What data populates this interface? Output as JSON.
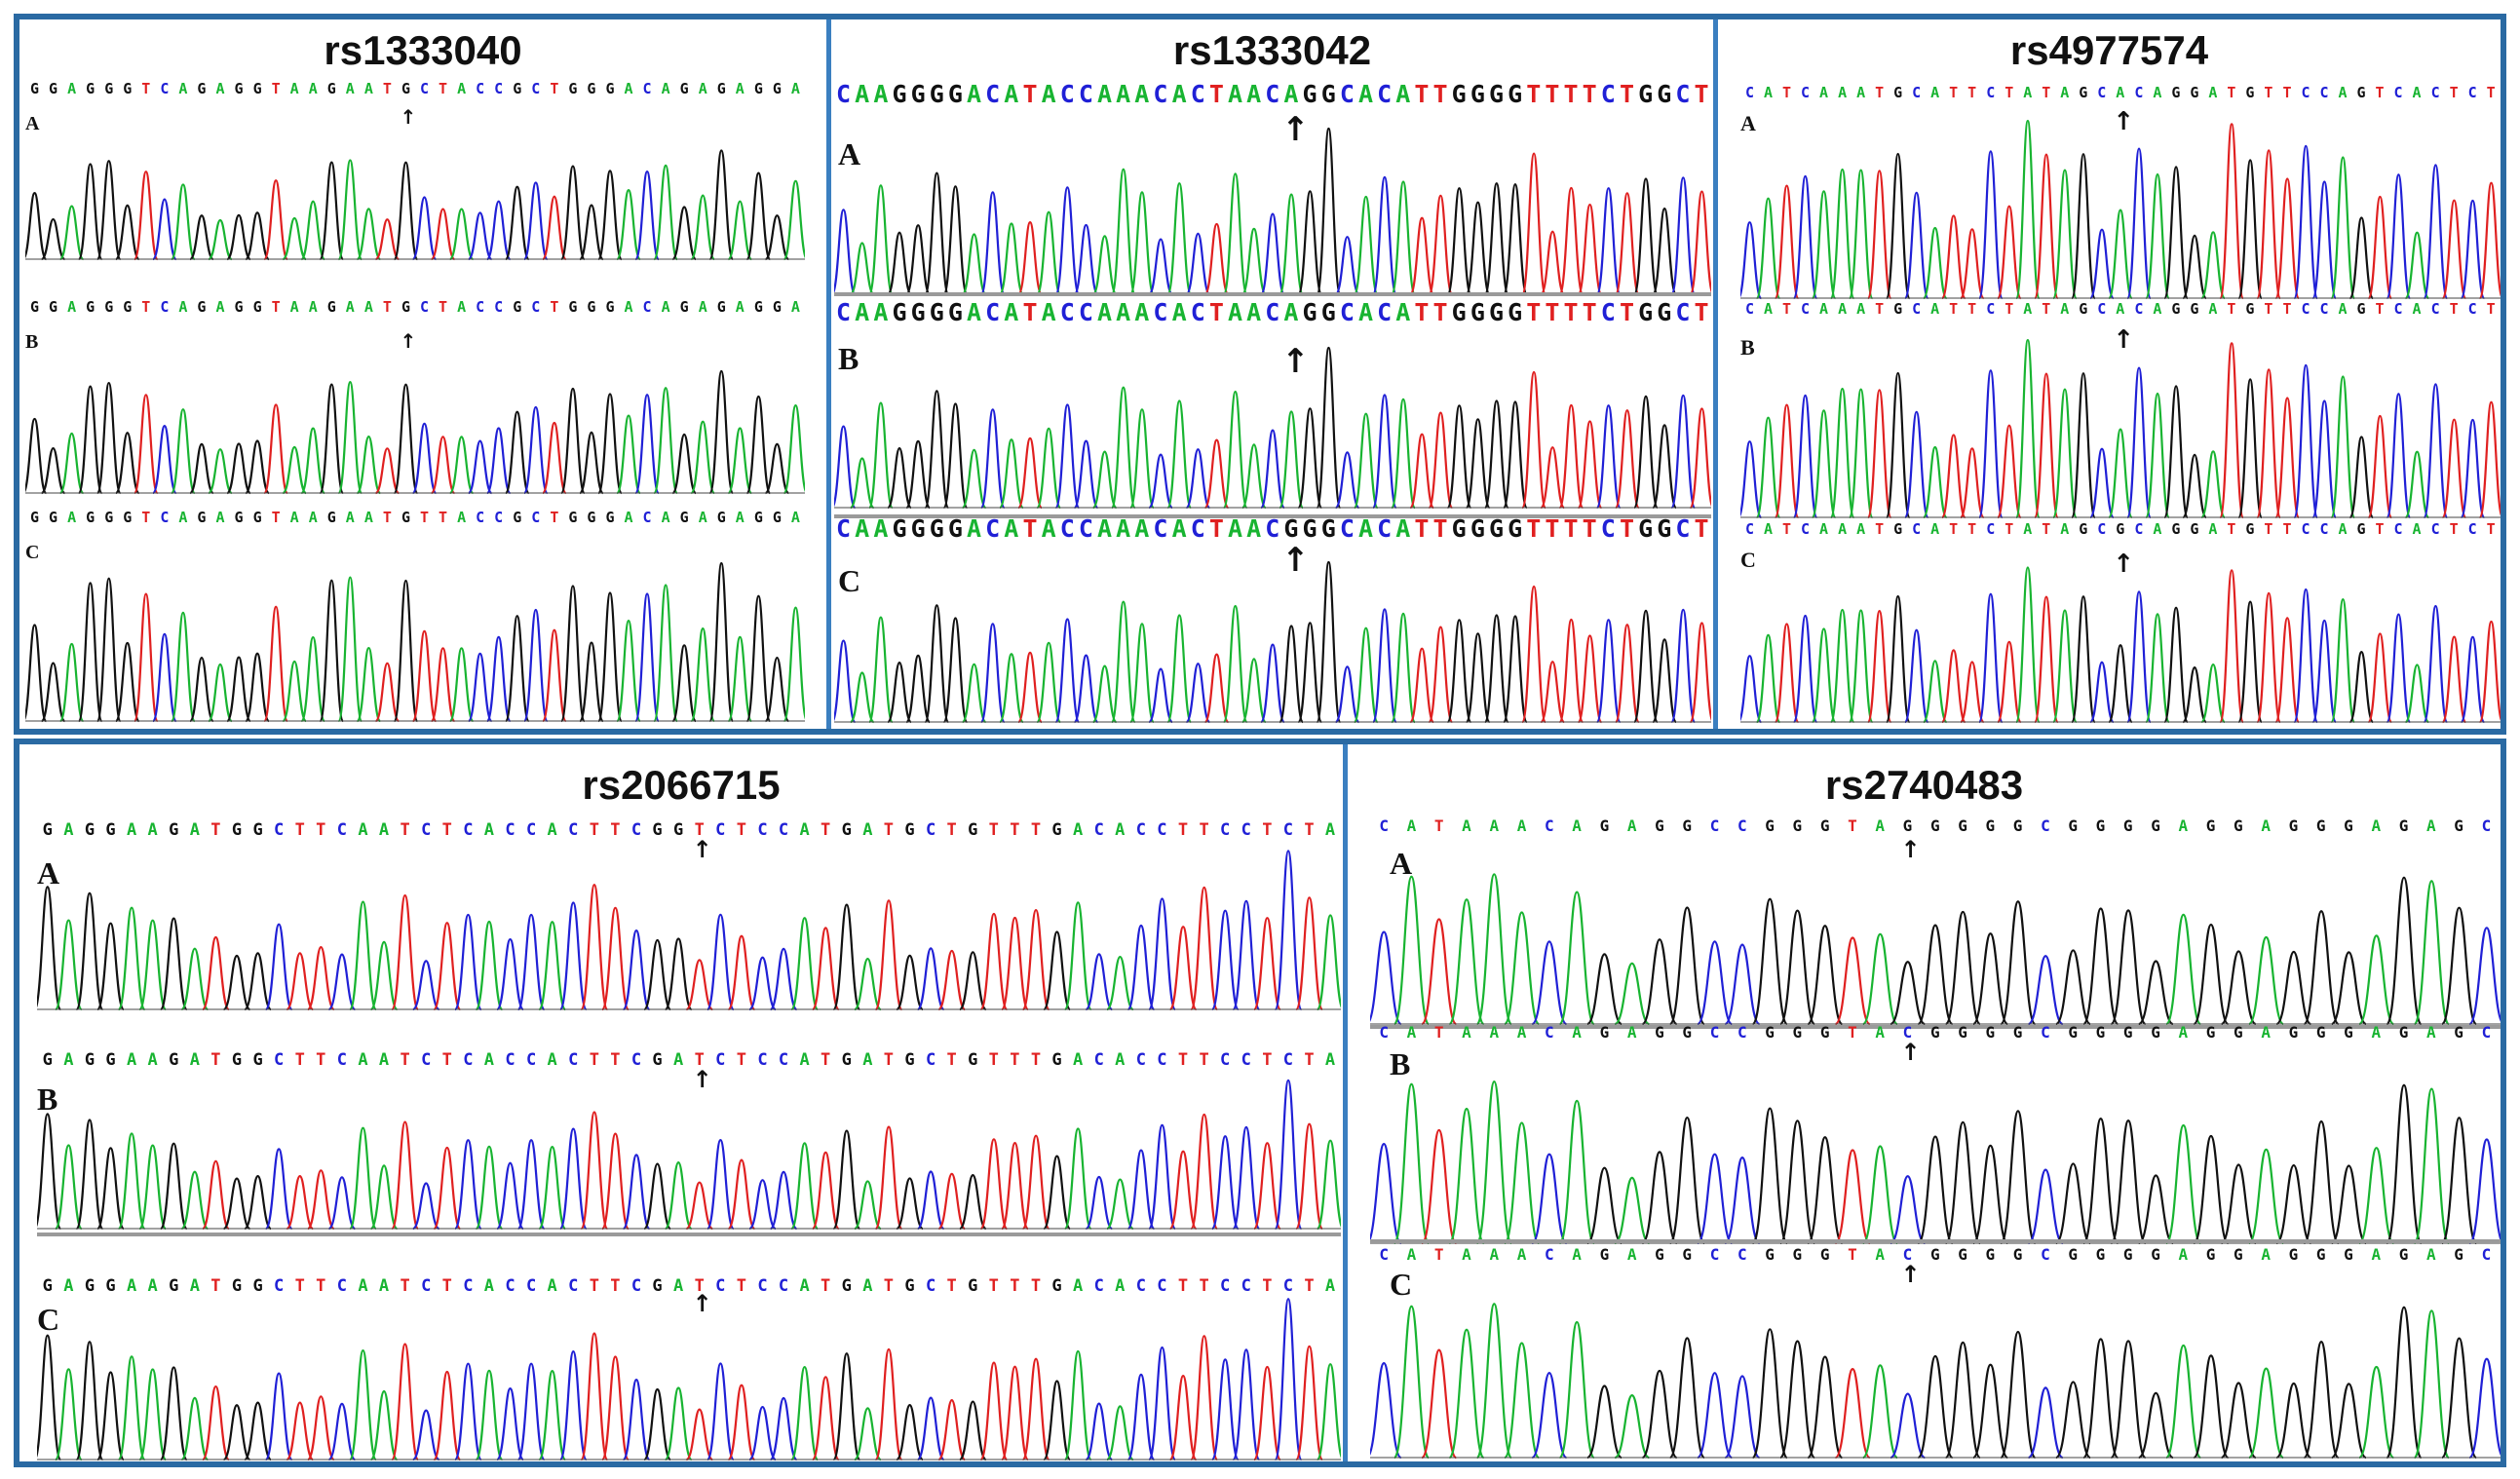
{
  "colors": {
    "A": "#18b431",
    "C": "#2020d6",
    "G": "#111111",
    "T": "#e02020",
    "frame": "#2a6aa3",
    "divider": "#3b7fc0"
  },
  "panels": [
    {
      "id": "rs1333040",
      "title": "rs1333040",
      "rows": [
        {
          "label": "A",
          "seq": "GGAGGGTCAGAGGTAAGAATGCTACCGCTGGGACAGAGAGGA"
        },
        {
          "label": "B",
          "seq": "GGAGGGTCAGAGGTAAGAATGCTACCGCTGGGACAGAGAGGA"
        },
        {
          "label": "C",
          "seq": "GGAGGGTCAGAGGTAAGAATGTTACCGCTGGGACAGAGAGGA"
        }
      ]
    },
    {
      "id": "rs1333042",
      "title": "rs1333042",
      "rows": [
        {
          "label": "A",
          "seq": "CAAGGGGACATACCAAACACTAACAGGCACATTGGGGTTTTCTGGCT"
        },
        {
          "label": "B",
          "seq": "CAAGGGGACATACCAAACACTAACAGGCACATTGGGGTTTTCTGGCT"
        },
        {
          "label": "C",
          "seq": "CAAGGGGACATACCAAACACTAACGGGCACATTGGGGTTTTCTGGCT"
        }
      ]
    },
    {
      "id": "rs4977574",
      "title": "rs4977574",
      "rows": [
        {
          "label": "A",
          "seq": "CATCAAATGCATTCTATAGCACAGGATGTTCCAGTCACTCT"
        },
        {
          "label": "B",
          "seq": "CATCAAATGCATTCTATAGCACAGGATGTTCCAGTCACTCT"
        },
        {
          "label": "C",
          "seq": "CATCAAATGCATTCTATAGCGCAGGATGTTCCAGTCACTCT"
        }
      ]
    },
    {
      "id": "rs2066715",
      "title": "rs2066715",
      "rows": [
        {
          "label": "A",
          "seq": "GAGGAAGATGGCTTCAATCTCACCACTTCGGTCTCCATGATGCTGTTTGACACCTTCCTCTA"
        },
        {
          "label": "B",
          "seq": "GAGGAAGATGGCTTCAATCTCACCACTTCGATCTCCATGATGCTGTTTGACACCTTCCTCTA"
        },
        {
          "label": "C",
          "seq": "GAGGAAGATGGCTTCAATCTCACCACTTCGATCTCCATGATGCTGTTTGACACCTTCCTCTA"
        }
      ]
    },
    {
      "id": "rs2740483",
      "title": "rs2740483",
      "rows": [
        {
          "label": "A",
          "seq": "CATAAACAGAGGCCGGGTAGGGGGCGGGGAGGAGGGAGAGC"
        },
        {
          "label": "B",
          "seq": "CATAAACAGAGGCCGGGTACGGGGCGGGGAGGAGGGAGAGC"
        },
        {
          "label": "C",
          "seq": "CATAAACAGAGGCCGGGTACGGGGCGGGGAGGAGGGAGAGC"
        }
      ]
    }
  ],
  "arrow_glyph": "↑"
}
